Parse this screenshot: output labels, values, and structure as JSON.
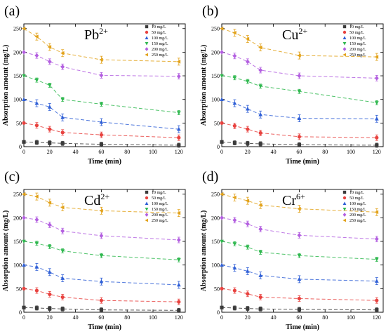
{
  "series_styles": [
    {
      "color": "#3b3b3b",
      "marker": "square"
    },
    {
      "color": "#e8423f",
      "marker": "circle"
    },
    {
      "color": "#2f5fd6",
      "marker": "triangle-up"
    },
    {
      "color": "#2fb84f",
      "marker": "triangle-down"
    },
    {
      "color": "#b35fe0",
      "marker": "diamond"
    },
    {
      "color": "#e2a21a",
      "marker": "triangle-left"
    }
  ],
  "chart_data": [
    {
      "type": "scatter",
      "panel_label": "(a)",
      "ion_base": "Pb",
      "ion_charge": "2+",
      "xlabel": "Time (min)",
      "ylabel": "Absorption amount (mg/L)",
      "xlim": [
        0,
        125
      ],
      "ylim": [
        0,
        260
      ],
      "xticks": [
        0,
        20,
        40,
        60,
        80,
        100,
        120
      ],
      "yticks": [
        0,
        50,
        100,
        150,
        200,
        250
      ],
      "x": [
        0,
        10,
        20,
        30,
        60,
        120
      ],
      "series": [
        {
          "name": "10 mg/L",
          "values": [
            10,
            9,
            8,
            7,
            5,
            3
          ]
        },
        {
          "name": "50 mg/L",
          "values": [
            50,
            45,
            37,
            30,
            25,
            19
          ]
        },
        {
          "name": "100 mg/L",
          "values": [
            100,
            92,
            84,
            62,
            52,
            37
          ]
        },
        {
          "name": "150 mg/L",
          "values": [
            150,
            141,
            130,
            100,
            90,
            72
          ]
        },
        {
          "name": "200 mg/L",
          "values": [
            200,
            193,
            180,
            169,
            151,
            149
          ]
        },
        {
          "name": "250 mg/L",
          "values": [
            250,
            233,
            211,
            198,
            184,
            180
          ]
        }
      ]
    },
    {
      "type": "scatter",
      "panel_label": "(b)",
      "ion_base": "Cu",
      "ion_charge": "2+",
      "xlabel": "Time (min)",
      "ylabel": "Absorption amount (mg/L)",
      "xlim": [
        0,
        125
      ],
      "ylim": [
        0,
        260
      ],
      "xticks": [
        0,
        20,
        40,
        60,
        80,
        100,
        120
      ],
      "yticks": [
        0,
        50,
        100,
        150,
        200,
        250
      ],
      "x": [
        0,
        10,
        20,
        30,
        60,
        120
      ],
      "series": [
        {
          "name": "10 mg/L",
          "values": [
            10,
            8,
            7,
            6,
            4,
            3
          ]
        },
        {
          "name": "50 mg/L",
          "values": [
            50,
            44,
            37,
            29,
            21,
            19
          ]
        },
        {
          "name": "100 mg/L",
          "values": [
            100,
            92,
            80,
            68,
            60,
            59
          ]
        },
        {
          "name": "150 mg/L",
          "values": [
            150,
            146,
            138,
            128,
            117,
            93
          ]
        },
        {
          "name": "200 mg/L",
          "values": [
            200,
            192,
            180,
            162,
            150,
            145
          ]
        },
        {
          "name": "250 mg/L",
          "values": [
            250,
            241,
            228,
            210,
            193,
            190
          ]
        }
      ]
    },
    {
      "type": "scatter",
      "panel_label": "(c)",
      "ion_base": "Cd",
      "ion_charge": "2+",
      "xlabel": "Time (min)",
      "ylabel": "Absorption amount (mg/L)",
      "xlim": [
        0,
        125
      ],
      "ylim": [
        0,
        260
      ],
      "xticks": [
        0,
        20,
        40,
        60,
        80,
        100,
        120
      ],
      "yticks": [
        0,
        50,
        100,
        150,
        200,
        250
      ],
      "x": [
        0,
        10,
        20,
        30,
        60,
        120
      ],
      "series": [
        {
          "name": "10 mg/L",
          "values": [
            10,
            9,
            8,
            7,
            5,
            4
          ]
        },
        {
          "name": "50 mg/L",
          "values": [
            50,
            46,
            38,
            32,
            25,
            22
          ]
        },
        {
          "name": "100 mg/L",
          "values": [
            100,
            96,
            85,
            72,
            65,
            58
          ]
        },
        {
          "name": "150 mg/L",
          "values": [
            150,
            146,
            139,
            130,
            120,
            111
          ]
        },
        {
          "name": "200 mg/L",
          "values": [
            200,
            196,
            185,
            172,
            162,
            153
          ]
        },
        {
          "name": "250 mg/L",
          "values": [
            250,
            245,
            232,
            222,
            215,
            210
          ]
        }
      ]
    },
    {
      "type": "scatter",
      "panel_label": "(d)",
      "ion_base": "Cr",
      "ion_charge": "6+",
      "xlabel": "Time (min)",
      "ylabel": "Absorption amount (mg/L)",
      "xlim": [
        0,
        125
      ],
      "ylim": [
        0,
        260
      ],
      "xticks": [
        0,
        20,
        40,
        60,
        80,
        100,
        120
      ],
      "yticks": [
        0,
        50,
        100,
        150,
        200,
        250
      ],
      "x": [
        0,
        10,
        20,
        30,
        60,
        120
      ],
      "series": [
        {
          "name": "10 mg/L",
          "values": [
            10,
            9,
            8,
            7,
            6,
            5
          ]
        },
        {
          "name": "50 mg/L",
          "values": [
            50,
            46,
            39,
            32,
            29,
            25
          ]
        },
        {
          "name": "100 mg/L",
          "values": [
            100,
            94,
            87,
            78,
            70,
            66
          ]
        },
        {
          "name": "150 mg/L",
          "values": [
            150,
            145,
            138,
            127,
            120,
            112
          ]
        },
        {
          "name": "200 mg/L",
          "values": [
            200,
            195,
            187,
            176,
            163,
            155
          ]
        },
        {
          "name": "250 mg/L",
          "values": [
            250,
            243,
            236,
            227,
            219,
            212
          ]
        }
      ]
    }
  ]
}
